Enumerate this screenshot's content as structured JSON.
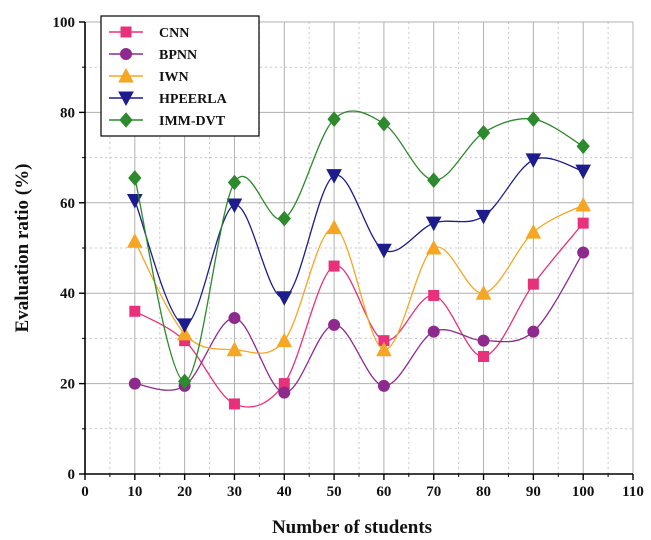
{
  "chart_data": {
    "type": "line",
    "xlabel": "Number of students",
    "ylabel": "Evaluation ratio (%)",
    "xlim": [
      0,
      110
    ],
    "ylim": [
      0,
      100
    ],
    "x_ticks": [
      0,
      10,
      20,
      30,
      40,
      50,
      60,
      70,
      80,
      90,
      100,
      110
    ],
    "y_ticks": [
      0,
      20,
      40,
      60,
      80,
      100
    ],
    "grid": true,
    "legend_position": "top-left",
    "x": [
      10,
      20,
      30,
      40,
      50,
      60,
      70,
      80,
      90,
      100
    ],
    "series": [
      {
        "name": "CNN",
        "color": "#e8317a",
        "marker": "square",
        "values": [
          36,
          29.5,
          15.5,
          20,
          46,
          29.5,
          39.5,
          26,
          42,
          55.5
        ]
      },
      {
        "name": "BPNN",
        "color": "#8e2a8e",
        "marker": "circle",
        "values": [
          20,
          19.5,
          34.5,
          18,
          33,
          19.5,
          31.5,
          29.5,
          31.5,
          49
        ]
      },
      {
        "name": "IWN",
        "color": "#f5a623",
        "marker": "triangle-up",
        "values": [
          51.5,
          31,
          27.5,
          29.5,
          54.5,
          27.5,
          50,
          40,
          53.5,
          59.5
        ]
      },
      {
        "name": "HPEERLA",
        "color": "#1c1c8c",
        "marker": "triangle-down",
        "values": [
          60.5,
          33,
          59.5,
          39,
          66,
          49.5,
          55.5,
          57,
          69.5,
          67
        ]
      },
      {
        "name": "IMM-DVT",
        "color": "#2d8a2d",
        "marker": "diamond",
        "values": [
          65.5,
          20.5,
          64.5,
          56.5,
          78.5,
          77.5,
          65,
          75.5,
          78.5,
          72.5
        ]
      }
    ]
  }
}
